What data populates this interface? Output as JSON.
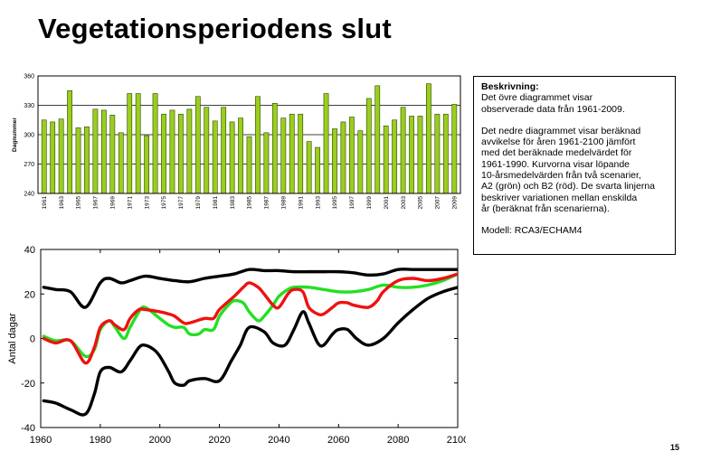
{
  "title": "Vegetationsperiodens slut",
  "page_number": "15",
  "description": {
    "heading": "Beskrivning:",
    "paragraph1": [
      "Det övre diagrammet visar",
      "observerade data från 1961-2009."
    ],
    "paragraph2": [
      "Det nedre diagrammet visar beräknad",
      "avvikelse för åren 1961-2100 jämfört",
      "med det beräknade medelvärdet för",
      "1961-1990. Kurvorna visar löpande",
      "10-årsmedelvärden från två scenarier,",
      "A2 (grön) och B2 (röd). De svarta linjerna",
      "beskriver variationen mellan enskilda",
      "år (beräknat från scenarierna)."
    ],
    "model": "Modell: RCA3/ECHAM4"
  },
  "colors": {
    "bar_fill": "#9acd1e",
    "bar_stroke": "#2e4a00",
    "series_a2": "#22e022",
    "series_b2": "#ee1111",
    "envelope": "#000000"
  },
  "chart_data": [
    {
      "type": "bar",
      "title": "",
      "ylabel": "Dagnummer",
      "xlabel": "",
      "ylim": [
        240,
        360
      ],
      "yticks": [
        240,
        270,
        300,
        330,
        360
      ],
      "grid": "horizontal",
      "x_tick_labels": [
        "1961",
        "1963",
        "1965",
        "1967",
        "1969",
        "1971",
        "1973",
        "1975",
        "1977",
        "1979",
        "1981",
        "1983",
        "1985",
        "1987",
        "1989",
        "1991",
        "1993",
        "1995",
        "1997",
        "1999",
        "2001",
        "2003",
        "2005",
        "2007",
        "2009"
      ],
      "categories": [
        1961,
        1962,
        1963,
        1964,
        1965,
        1966,
        1967,
        1968,
        1969,
        1970,
        1971,
        1972,
        1973,
        1974,
        1975,
        1976,
        1977,
        1978,
        1979,
        1980,
        1981,
        1982,
        1983,
        1984,
        1985,
        1986,
        1987,
        1988,
        1989,
        1990,
        1991,
        1992,
        1993,
        1994,
        1995,
        1996,
        1997,
        1998,
        1999,
        2000,
        2001,
        2002,
        2003,
        2004,
        2005,
        2006,
        2007,
        2008,
        2009
      ],
      "values": [
        315,
        313,
        316,
        345,
        307,
        308,
        326,
        325,
        320,
        302,
        342,
        342,
        299,
        342,
        321,
        325,
        321,
        326,
        339,
        328,
        314,
        328,
        313,
        317,
        298,
        339,
        302,
        332,
        317,
        321,
        321,
        293,
        287,
        342,
        306,
        313,
        318,
        304,
        337,
        350,
        309,
        315,
        328,
        319,
        319,
        352,
        321,
        321,
        331
      ]
    },
    {
      "type": "line",
      "title": "",
      "ylabel": "Antal dagar",
      "xlabel": "",
      "xlim": [
        1960,
        2100
      ],
      "ylim": [
        -40,
        40
      ],
      "xticks": [
        1960,
        1980,
        2000,
        2020,
        2040,
        2060,
        2080,
        2100
      ],
      "yticks": [
        -40,
        -20,
        0,
        20,
        40
      ],
      "series": [
        {
          "role": "upper-envelope",
          "color": "#000000",
          "x": [
            1961,
            1965,
            1970,
            1975,
            1980,
            1983,
            1987,
            1990,
            1995,
            2000,
            2005,
            2010,
            2015,
            2020,
            2025,
            2030,
            2035,
            2040,
            2045,
            2050,
            2055,
            2060,
            2065,
            2070,
            2075,
            2080,
            2085,
            2090,
            2095,
            2100
          ],
          "values": [
            23,
            22,
            21,
            14,
            25,
            27,
            25,
            26,
            28,
            27,
            26,
            25.5,
            27,
            28,
            29,
            31,
            30.5,
            30.5,
            30,
            30,
            30,
            30,
            29.5,
            28.5,
            29,
            31,
            31,
            31,
            31,
            31
          ]
        },
        {
          "role": "lower-envelope",
          "color": "#000000",
          "x": [
            1961,
            1965,
            1970,
            1975,
            1978,
            1980,
            1983,
            1987,
            1990,
            1993,
            1995,
            1998,
            2000,
            2003,
            2005,
            2008,
            2010,
            2015,
            2020,
            2024,
            2027,
            2030,
            2035,
            2038,
            2042,
            2045,
            2048,
            2050,
            2053,
            2055,
            2058,
            2060,
            2063,
            2066,
            2070,
            2075,
            2080,
            2085,
            2090,
            2095,
            2100
          ],
          "values": [
            -28,
            -29,
            -32,
            -34,
            -25,
            -15,
            -13,
            -15,
            -10,
            -4,
            -3,
            -5,
            -8,
            -15,
            -20,
            -21,
            -19,
            -18,
            -19,
            -10,
            -3,
            5,
            3,
            -2,
            -3,
            4,
            12,
            7,
            -2,
            -3,
            2,
            4,
            4,
            0,
            -3,
            0,
            7,
            13,
            18,
            21,
            23
          ]
        },
        {
          "name": "A2",
          "role": "scenario-A2",
          "color": "#22e022",
          "x": [
            1961,
            1965,
            1970,
            1975,
            1978,
            1980,
            1983,
            1985,
            1988,
            1990,
            1993,
            1995,
            2000,
            2003,
            2005,
            2008,
            2010,
            2013,
            2015,
            2018,
            2020,
            2023,
            2025,
            2028,
            2030,
            2033,
            2035,
            2038,
            2040,
            2043,
            2045,
            2050,
            2055,
            2060,
            2065,
            2070,
            2075,
            2080,
            2085,
            2090,
            2095,
            2100
          ],
          "values": [
            1,
            -1,
            -1,
            -8,
            -5,
            4,
            8,
            5,
            0,
            5,
            12,
            14,
            9,
            6,
            5,
            5,
            2,
            2,
            4,
            4,
            10,
            15,
            17,
            16,
            12,
            8,
            10,
            15,
            19,
            22,
            23,
            23,
            22,
            21,
            21,
            22,
            24,
            23,
            23,
            24,
            26,
            29
          ]
        },
        {
          "name": "B2",
          "role": "scenario-B2",
          "color": "#ee1111",
          "x": [
            1961,
            1965,
            1970,
            1975,
            1978,
            1980,
            1983,
            1985,
            1988,
            1990,
            1993,
            1995,
            2000,
            2003,
            2005,
            2008,
            2010,
            2015,
            2018,
            2020,
            2025,
            2028,
            2030,
            2033,
            2035,
            2038,
            2040,
            2043,
            2045,
            2048,
            2050,
            2053,
            2055,
            2058,
            2060,
            2063,
            2065,
            2070,
            2073,
            2075,
            2080,
            2085,
            2090,
            2095,
            2100
          ],
          "values": [
            0,
            -2,
            -1,
            -11,
            -4,
            5,
            8,
            6,
            4,
            9,
            13,
            13,
            12,
            11,
            10,
            7,
            7,
            9,
            9,
            13,
            19,
            23,
            25,
            23,
            20,
            15,
            14,
            20,
            22,
            21,
            14,
            11,
            11,
            14,
            16,
            16,
            15,
            14,
            17,
            21,
            26,
            27,
            26,
            27,
            29
          ]
        }
      ]
    }
  ]
}
